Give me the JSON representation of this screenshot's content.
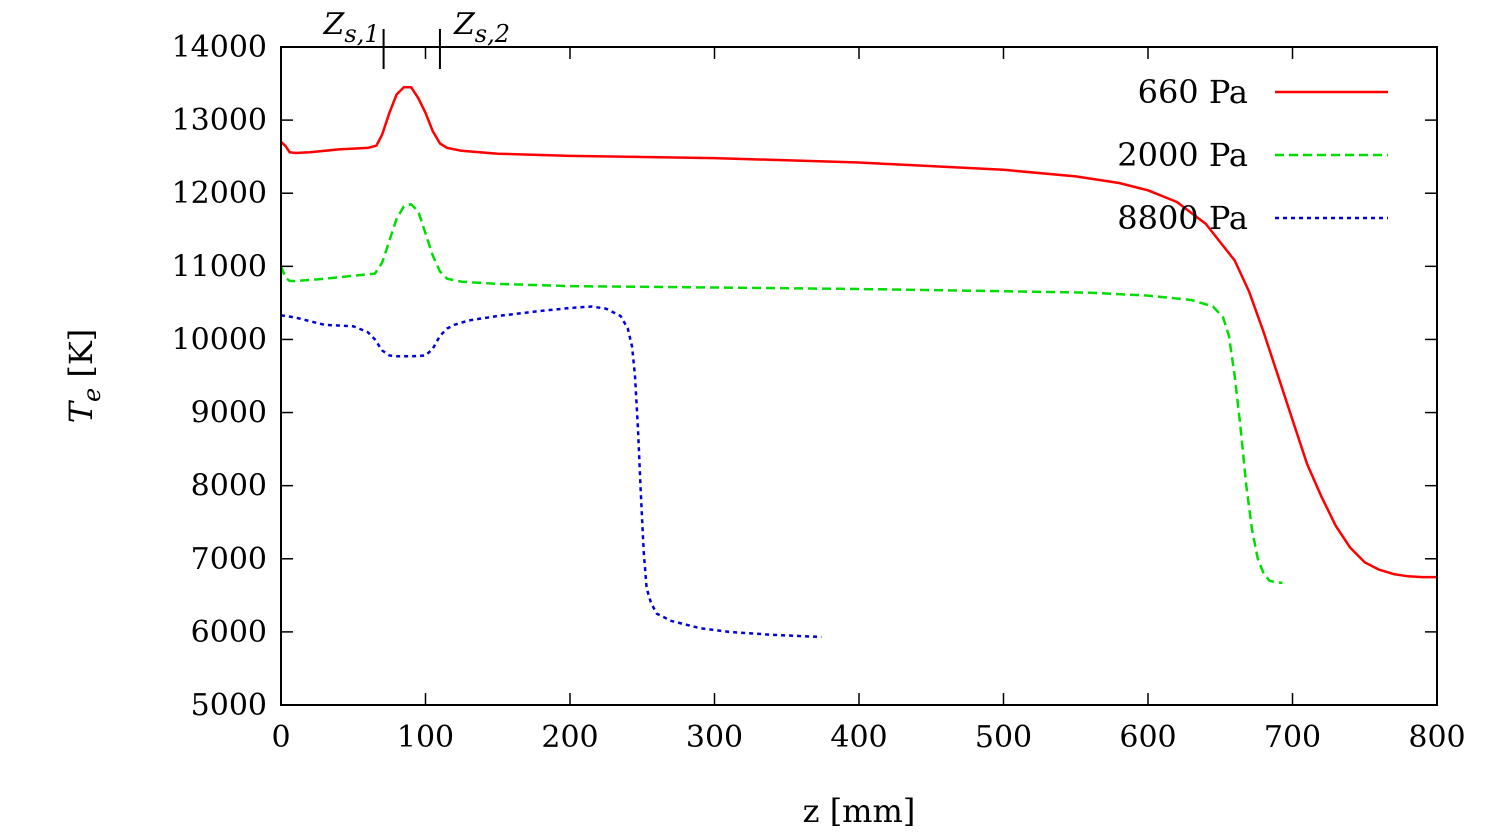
{
  "chart_data": {
    "type": "line",
    "title": "",
    "xlabel": "z [mm]",
    "ylabel": "T_e [K]",
    "xlim": [
      0,
      800
    ],
    "ylim": [
      5000,
      14000
    ],
    "xticks": [
      0,
      100,
      200,
      300,
      400,
      500,
      600,
      700,
      800
    ],
    "yticks": [
      5000,
      6000,
      7000,
      8000,
      9000,
      10000,
      11000,
      12000,
      13000,
      14000
    ],
    "grid": false,
    "legend_position": "top-right",
    "markers": [
      {
        "label": "Z",
        "sub": "s,1",
        "x": 71
      },
      {
        "label": "Z",
        "sub": "s,2",
        "x": 110
      }
    ],
    "series": [
      {
        "name": "660 Pa",
        "color": "#ff0000",
        "dash": "solid",
        "x": [
          0,
          3,
          6,
          10,
          20,
          40,
          60,
          66,
          70,
          75,
          80,
          85,
          90,
          95,
          100,
          105,
          110,
          115,
          125,
          150,
          200,
          300,
          400,
          500,
          550,
          580,
          600,
          620,
          640,
          660,
          670,
          680,
          690,
          700,
          710,
          720,
          730,
          740,
          750,
          760,
          770,
          780,
          790,
          800
        ],
        "y": [
          12700,
          12650,
          12560,
          12550,
          12560,
          12600,
          12620,
          12650,
          12800,
          13100,
          13350,
          13450,
          13450,
          13300,
          13100,
          12850,
          12680,
          12620,
          12580,
          12540,
          12510,
          12480,
          12420,
          12320,
          12230,
          12140,
          12040,
          11880,
          11580,
          11080,
          10650,
          10100,
          9500,
          8900,
          8300,
          7850,
          7450,
          7150,
          6950,
          6850,
          6790,
          6760,
          6750,
          6750
        ]
      },
      {
        "name": "2000 Pa",
        "color": "#00dd00",
        "dash": "dashed",
        "x": [
          0,
          3,
          6,
          10,
          30,
          50,
          65,
          70,
          75,
          80,
          85,
          90,
          95,
          100,
          105,
          110,
          115,
          125,
          150,
          200,
          300,
          400,
          500,
          560,
          600,
          630,
          645,
          652,
          656,
          660,
          664,
          668,
          672,
          676,
          680,
          684,
          688,
          693
        ],
        "y": [
          11000,
          10850,
          10800,
          10800,
          10830,
          10870,
          10900,
          11050,
          11350,
          11650,
          11820,
          11850,
          11750,
          11450,
          11150,
          10930,
          10830,
          10790,
          10760,
          10730,
          10710,
          10690,
          10660,
          10640,
          10600,
          10540,
          10450,
          10300,
          10050,
          9500,
          8800,
          8000,
          7400,
          7000,
          6800,
          6700,
          6680,
          6670
        ]
      },
      {
        "name": "8800 Pa",
        "color": "#0000dd",
        "dash": "dotted",
        "x": [
          0,
          10,
          20,
          30,
          50,
          60,
          65,
          70,
          75,
          80,
          90,
          100,
          105,
          110,
          115,
          120,
          130,
          150,
          180,
          200,
          215,
          225,
          235,
          240,
          243,
          245,
          247,
          249,
          251,
          253,
          256,
          260,
          270,
          290,
          310,
          340,
          374
        ],
        "y": [
          10330,
          10300,
          10250,
          10200,
          10180,
          10100,
          10000,
          9850,
          9780,
          9770,
          9770,
          9780,
          9870,
          10050,
          10150,
          10200,
          10260,
          10320,
          10390,
          10430,
          10450,
          10420,
          10320,
          10150,
          9900,
          9500,
          8800,
          7900,
          7100,
          6600,
          6400,
          6250,
          6150,
          6050,
          6000,
          5960,
          5930
        ]
      }
    ]
  }
}
